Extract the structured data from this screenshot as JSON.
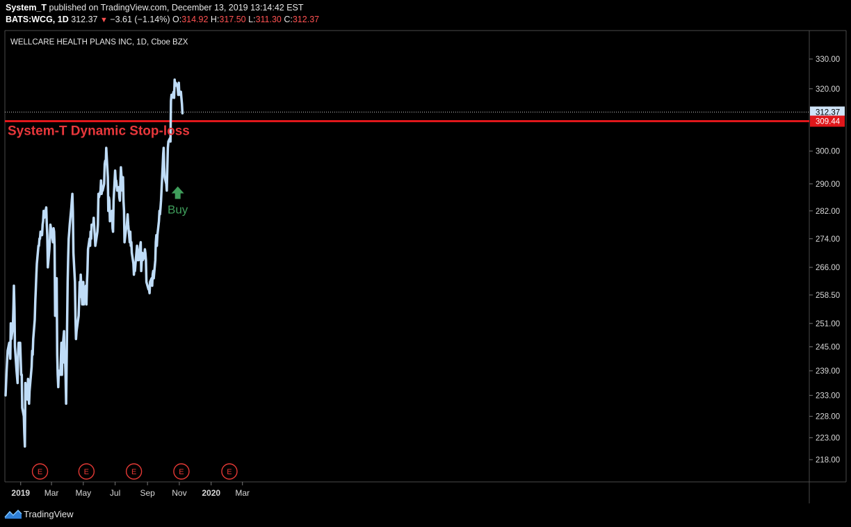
{
  "header": {
    "publisher": "System_T",
    "published_text": "published on TradingView.com, December 13, 2019 13:14:42 EST",
    "symbol": "BATS:WCG, 1D",
    "last": "312.37",
    "change": "−3.61 (−1.14%)",
    "o_label": "O:",
    "o": "314.92",
    "h_label": "H:",
    "h": "317.50",
    "l_label": "L:",
    "l": "311.30",
    "c_label": "C:",
    "c": "312.37"
  },
  "footer": {
    "brand": "TradingView"
  },
  "colors": {
    "line": "#bfdcf7",
    "stop": "#e0171b",
    "buy": "#3f9e5b",
    "earnings": "#e53935",
    "background": "#000000"
  },
  "chart_data": {
    "type": "line",
    "title": "WELLCARE HEALTH PLANS INC, 1D, Cboe BZX",
    "y_ticks": [
      "330.00",
      "320.00",
      "300.00",
      "290.00",
      "282.00",
      "274.00",
      "266.00",
      "258.50",
      "251.00",
      "245.00",
      "239.00",
      "233.00",
      "228.00",
      "223.00",
      "218.00"
    ],
    "x_ticks": [
      "2019",
      "Mar",
      "May",
      "Jul",
      "Sep",
      "Nov",
      "2020",
      "Mar"
    ],
    "y_scale": "log",
    "last_price": "312.37",
    "stop_loss": {
      "label": "System-T Dynamic Stop-loss",
      "value": "309.44"
    },
    "buy_signal": {
      "label": "Buy",
      "x": "2019-10-29",
      "y": 288
    },
    "earnings_markers": [
      {
        "label": "E",
        "x": "2019-02-07"
      },
      {
        "label": "E",
        "x": "2019-05-07"
      },
      {
        "label": "E",
        "x": "2019-08-06"
      },
      {
        "label": "E",
        "x": "2019-11-05"
      },
      {
        "label": "E",
        "x": "2020-02-05"
      }
    ],
    "series": [
      {
        "values": [
          [
            "2018-12-03",
            233
          ],
          [
            "2018-12-05",
            239
          ],
          [
            "2018-12-07",
            244
          ],
          [
            "2018-12-10",
            246
          ],
          [
            "2018-12-12",
            242
          ],
          [
            "2018-12-13",
            251
          ],
          [
            "2018-12-14",
            247
          ],
          [
            "2018-12-17",
            250
          ],
          [
            "2018-12-18",
            255
          ],
          [
            "2018-12-19",
            261
          ],
          [
            "2018-12-20",
            255
          ],
          [
            "2018-12-21",
            245
          ],
          [
            "2018-12-24",
            239
          ],
          [
            "2018-12-26",
            236
          ],
          [
            "2018-12-27",
            243
          ],
          [
            "2018-12-28",
            246
          ],
          [
            "2018-12-31",
            246
          ],
          [
            "2019-01-02",
            238
          ],
          [
            "2019-01-03",
            238
          ],
          [
            "2019-01-04",
            230
          ],
          [
            "2019-01-07",
            228
          ],
          [
            "2019-01-08",
            224
          ],
          [
            "2019-01-09",
            221
          ],
          [
            "2019-01-10",
            236
          ],
          [
            "2019-01-11",
            233
          ],
          [
            "2019-01-14",
            232
          ],
          [
            "2019-01-15",
            237
          ],
          [
            "2019-01-16",
            233
          ],
          [
            "2019-01-17",
            231
          ],
          [
            "2019-01-18",
            234
          ],
          [
            "2019-01-22",
            240
          ],
          [
            "2019-01-23",
            244
          ],
          [
            "2019-01-24",
            243
          ],
          [
            "2019-01-25",
            247
          ],
          [
            "2019-01-28",
            252
          ],
          [
            "2019-01-29",
            257
          ],
          [
            "2019-01-30",
            260
          ],
          [
            "2019-01-31",
            264
          ],
          [
            "2019-02-01",
            267
          ],
          [
            "2019-02-04",
            272
          ],
          [
            "2019-02-05",
            272
          ],
          [
            "2019-02-06",
            274
          ],
          [
            "2019-02-07",
            274
          ],
          [
            "2019-02-08",
            276
          ],
          [
            "2019-02-11",
            275
          ],
          [
            "2019-02-12",
            278
          ],
          [
            "2019-02-13",
            279
          ],
          [
            "2019-02-14",
            282
          ],
          [
            "2019-02-15",
            280
          ],
          [
            "2019-02-19",
            283
          ],
          [
            "2019-02-20",
            278
          ],
          [
            "2019-02-21",
            275
          ],
          [
            "2019-02-22",
            266
          ],
          [
            "2019-02-25",
            271
          ],
          [
            "2019-02-26",
            274
          ],
          [
            "2019-02-27",
            278
          ],
          [
            "2019-02-28",
            277
          ],
          [
            "2019-03-01",
            276
          ],
          [
            "2019-03-04",
            273
          ],
          [
            "2019-03-05",
            277
          ],
          [
            "2019-03-06",
            276
          ],
          [
            "2019-03-07",
            272
          ],
          [
            "2019-03-08",
            253
          ],
          [
            "2019-03-11",
            263
          ],
          [
            "2019-03-12",
            243
          ],
          [
            "2019-03-13",
            238
          ],
          [
            "2019-03-14",
            235
          ],
          [
            "2019-03-15",
            239
          ],
          [
            "2019-03-18",
            238
          ],
          [
            "2019-03-19",
            242
          ],
          [
            "2019-03-20",
            246
          ],
          [
            "2019-03-21",
            238
          ],
          [
            "2019-03-22",
            244
          ],
          [
            "2019-03-25",
            249
          ],
          [
            "2019-03-26",
            241
          ],
          [
            "2019-03-27",
            242
          ],
          [
            "2019-03-28",
            238
          ],
          [
            "2019-03-29",
            231
          ],
          [
            "2019-04-01",
            262
          ],
          [
            "2019-04-02",
            269
          ],
          [
            "2019-04-03",
            274
          ],
          [
            "2019-04-04",
            276
          ],
          [
            "2019-04-05",
            278
          ],
          [
            "2019-04-08",
            283
          ],
          [
            "2019-04-09",
            285
          ],
          [
            "2019-04-10",
            287
          ],
          [
            "2019-04-11",
            282
          ],
          [
            "2019-04-12",
            270
          ],
          [
            "2019-04-15",
            262
          ],
          [
            "2019-04-16",
            252
          ],
          [
            "2019-04-17",
            247
          ],
          [
            "2019-04-18",
            249
          ],
          [
            "2019-04-22",
            253
          ],
          [
            "2019-04-23",
            257
          ],
          [
            "2019-04-24",
            262
          ],
          [
            "2019-04-25",
            258
          ],
          [
            "2019-04-26",
            264
          ],
          [
            "2019-04-29",
            256
          ],
          [
            "2019-04-30",
            258
          ],
          [
            "2019-05-01",
            262
          ],
          [
            "2019-05-02",
            256
          ],
          [
            "2019-05-03",
            259
          ],
          [
            "2019-05-06",
            261
          ],
          [
            "2019-05-07",
            256
          ],
          [
            "2019-05-08",
            262
          ],
          [
            "2019-05-09",
            265
          ],
          [
            "2019-05-10",
            271
          ],
          [
            "2019-05-13",
            274
          ],
          [
            "2019-05-14",
            272
          ],
          [
            "2019-05-15",
            276
          ],
          [
            "2019-05-16",
            274
          ],
          [
            "2019-05-17",
            278
          ],
          [
            "2019-05-20",
            278
          ],
          [
            "2019-05-21",
            280
          ],
          [
            "2019-05-22",
            277
          ],
          [
            "2019-05-23",
            275
          ],
          [
            "2019-05-24",
            272
          ],
          [
            "2019-05-28",
            276
          ],
          [
            "2019-05-29",
            278
          ],
          [
            "2019-05-30",
            287
          ],
          [
            "2019-05-31",
            286
          ],
          [
            "2019-06-03",
            288
          ],
          [
            "2019-06-04",
            291
          ],
          [
            "2019-06-05",
            287
          ],
          [
            "2019-06-06",
            288
          ],
          [
            "2019-06-07",
            288
          ],
          [
            "2019-06-10",
            290
          ],
          [
            "2019-06-11",
            296
          ],
          [
            "2019-06-12",
            297
          ],
          [
            "2019-06-13",
            296
          ],
          [
            "2019-06-14",
            301
          ],
          [
            "2019-06-17",
            292
          ],
          [
            "2019-06-18",
            282
          ],
          [
            "2019-06-19",
            286
          ],
          [
            "2019-06-20",
            285
          ],
          [
            "2019-06-21",
            279
          ],
          [
            "2019-06-24",
            280
          ],
          [
            "2019-06-25",
            282
          ],
          [
            "2019-06-26",
            277
          ],
          [
            "2019-06-27",
            276
          ],
          [
            "2019-06-28",
            285
          ],
          [
            "2019-07-01",
            294
          ],
          [
            "2019-07-02",
            291
          ],
          [
            "2019-07-03",
            291
          ],
          [
            "2019-07-05",
            288
          ],
          [
            "2019-07-08",
            289
          ],
          [
            "2019-07-09",
            286
          ],
          [
            "2019-07-10",
            285
          ],
          [
            "2019-07-11",
            290
          ],
          [
            "2019-07-12",
            295
          ],
          [
            "2019-07-15",
            288
          ],
          [
            "2019-07-16",
            292
          ],
          [
            "2019-07-17",
            285
          ],
          [
            "2019-07-18",
            282
          ],
          [
            "2019-07-19",
            273
          ],
          [
            "2019-07-22",
            277
          ],
          [
            "2019-07-23",
            277
          ],
          [
            "2019-07-24",
            279
          ],
          [
            "2019-07-25",
            281
          ],
          [
            "2019-07-26",
            278
          ],
          [
            "2019-07-29",
            273
          ],
          [
            "2019-07-30",
            276
          ],
          [
            "2019-07-31",
            272
          ],
          [
            "2019-08-01",
            273
          ],
          [
            "2019-08-02",
            270
          ],
          [
            "2019-08-05",
            267
          ],
          [
            "2019-08-06",
            264
          ],
          [
            "2019-08-07",
            266
          ],
          [
            "2019-08-08",
            265
          ],
          [
            "2019-08-09",
            267
          ],
          [
            "2019-08-12",
            272
          ],
          [
            "2019-08-13",
            268
          ],
          [
            "2019-08-14",
            270
          ],
          [
            "2019-08-15",
            268
          ],
          [
            "2019-08-16",
            270
          ],
          [
            "2019-08-19",
            273
          ],
          [
            "2019-08-20",
            265
          ],
          [
            "2019-08-21",
            268
          ],
          [
            "2019-08-22",
            270
          ],
          [
            "2019-08-23",
            268
          ],
          [
            "2019-08-26",
            269
          ],
          [
            "2019-08-27",
            271
          ],
          [
            "2019-08-28",
            270
          ],
          [
            "2019-08-29",
            268
          ],
          [
            "2019-08-30",
            262
          ],
          [
            "2019-09-03",
            260
          ],
          [
            "2019-09-04",
            260
          ],
          [
            "2019-09-05",
            259
          ],
          [
            "2019-09-06",
            262
          ],
          [
            "2019-09-09",
            263
          ],
          [
            "2019-09-10",
            261
          ],
          [
            "2019-09-11",
            264
          ],
          [
            "2019-09-12",
            265
          ],
          [
            "2019-09-13",
            263
          ],
          [
            "2019-09-16",
            268
          ],
          [
            "2019-09-17",
            273
          ],
          [
            "2019-09-18",
            275
          ],
          [
            "2019-09-19",
            272
          ],
          [
            "2019-09-20",
            275
          ],
          [
            "2019-09-23",
            279
          ],
          [
            "2019-09-24",
            282
          ],
          [
            "2019-09-25",
            281
          ],
          [
            "2019-09-26",
            283
          ],
          [
            "2019-09-27",
            285
          ],
          [
            "2019-09-30",
            295
          ],
          [
            "2019-10-01",
            299
          ],
          [
            "2019-10-02",
            301
          ],
          [
            "2019-10-03",
            295
          ],
          [
            "2019-10-04",
            292
          ],
          [
            "2019-10-07",
            290
          ],
          [
            "2019-10-08",
            288
          ],
          [
            "2019-10-09",
            295
          ],
          [
            "2019-10-10",
            301
          ],
          [
            "2019-10-11",
            303
          ],
          [
            "2019-10-14",
            304
          ],
          [
            "2019-10-15",
            303
          ],
          [
            "2019-10-16",
            316
          ],
          [
            "2019-10-17",
            318
          ],
          [
            "2019-10-18",
            317
          ],
          [
            "2019-10-21",
            319
          ],
          [
            "2019-10-22",
            317
          ],
          [
            "2019-10-23",
            323
          ],
          [
            "2019-10-24",
            321
          ],
          [
            "2019-10-25",
            322
          ],
          [
            "2019-10-28",
            321
          ],
          [
            "2019-10-29",
            320
          ],
          [
            "2019-10-30",
            318
          ],
          [
            "2019-10-31",
            322
          ],
          [
            "2019-11-01",
            318
          ],
          [
            "2019-11-04",
            319
          ],
          [
            "2019-11-05",
            317
          ],
          [
            "2019-11-06",
            315
          ],
          [
            "2019-11-07",
            312
          ]
        ]
      }
    ]
  }
}
